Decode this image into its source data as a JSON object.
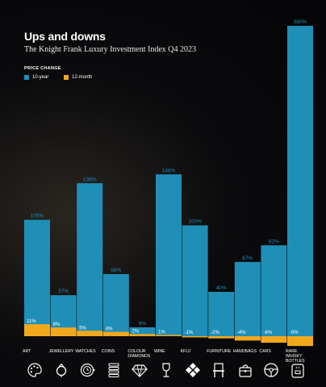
{
  "chart_data": {
    "type": "bar",
    "title": "Ups and downs",
    "subtitle": "The Knight Frank Luxury Investment Index Q4 2023",
    "legend_title": "PRICE CHANGE",
    "categories": [
      "ART",
      "JEWELLERY",
      "WATCHES",
      "COINS",
      "COLOUR DIAMONDS",
      "WINE",
      "KFLII",
      "FURNITURE",
      "HANDBAGS",
      "CARS",
      "RARE WHISKY BOTTLES"
    ],
    "series": [
      {
        "name": "10-year",
        "values": [
          105,
          37,
          138,
          56,
          8,
          146,
          100,
          40,
          67,
          82,
          280
        ],
        "labels": [
          "105%",
          "37%",
          "138%",
          "56%",
          "8%",
          "146%",
          "100%",
          "40%",
          "67%",
          "82%",
          "280%"
        ]
      },
      {
        "name": "12-month",
        "values": [
          11,
          8,
          5,
          4,
          2,
          1,
          -1,
          -2,
          -4,
          -6,
          -9
        ],
        "labels": [
          "11%",
          "8%",
          "5%",
          "4%",
          "2%",
          "1%",
          "-1%",
          "-2%",
          "-4%",
          "-6%",
          "-9%"
        ]
      }
    ],
    "colors": {
      "ten_year": "#1f8fb8",
      "twelve_month": "#f2a81d"
    },
    "icons": [
      "palette-icon",
      "ring-icon",
      "watch-icon",
      "coin-stack-icon",
      "diamond-icon",
      "wine-glass-icon",
      "kflii-icon",
      "chair-icon",
      "handbag-icon",
      "steering-wheel-icon",
      "whisky-bottle-icon"
    ],
    "grid": false,
    "legend_position": "top-left"
  }
}
